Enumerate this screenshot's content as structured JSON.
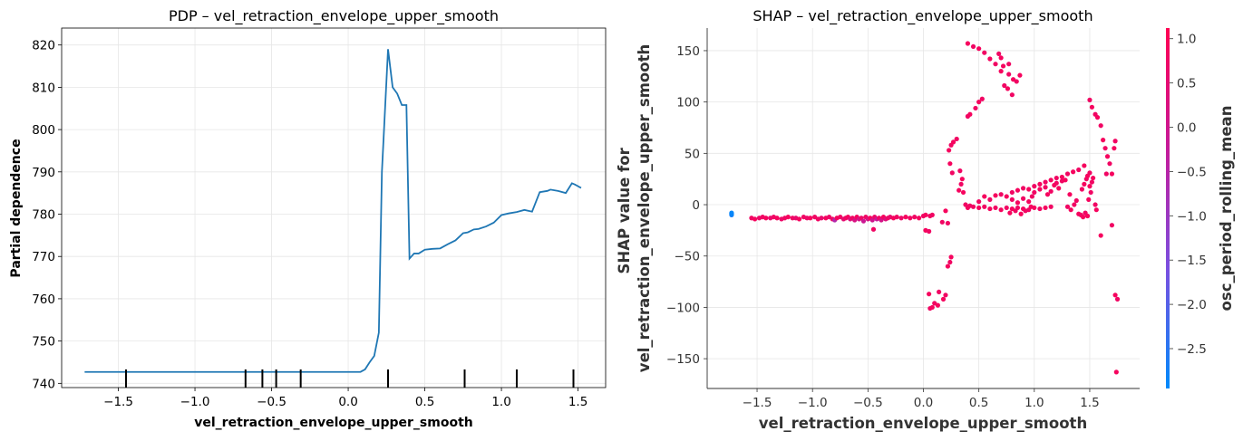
{
  "chart_data": [
    {
      "type": "line",
      "title": "PDP – vel_retraction_envelope_upper_smooth",
      "xlabel": "vel_retraction_envelope_upper_smooth",
      "ylabel": "Partial dependence",
      "xlim": [
        -1.87,
        1.68
      ],
      "ylim": [
        739,
        824
      ],
      "xticks": [
        -1.5,
        -1.0,
        -0.5,
        0.0,
        0.5,
        1.0,
        1.5
      ],
      "xtick_labels": [
        "−1.5",
        "−1.0",
        "−0.5",
        "0.0",
        "0.5",
        "1.0",
        "1.5"
      ],
      "yticks": [
        740,
        750,
        760,
        770,
        780,
        790,
        800,
        810,
        820
      ],
      "yticklabels": [
        "740",
        "750",
        "760",
        "770",
        "780",
        "790",
        "800",
        "810",
        "820"
      ],
      "grid": true,
      "series_color": "#1f77b4",
      "x": [
        -1.72,
        -1.5,
        -1.0,
        -0.5,
        0.0,
        0.08,
        0.11,
        0.14,
        0.17,
        0.2,
        0.22,
        0.26,
        0.29,
        0.32,
        0.35,
        0.38,
        0.4,
        0.43,
        0.46,
        0.5,
        0.55,
        0.6,
        0.65,
        0.7,
        0.75,
        0.78,
        0.82,
        0.85,
        0.9,
        0.95,
        1.0,
        1.05,
        1.1,
        1.15,
        1.2,
        1.25,
        1.3,
        1.32,
        1.37,
        1.42,
        1.46,
        1.48,
        1.52
      ],
      "y": [
        742.7,
        742.7,
        742.7,
        742.7,
        742.7,
        742.7,
        743.3,
        745.0,
        746.5,
        752.0,
        790.0,
        819.0,
        810.0,
        808.5,
        805.8,
        805.8,
        769.5,
        770.7,
        770.7,
        771.6,
        771.8,
        771.9,
        772.9,
        773.8,
        775.5,
        775.7,
        776.4,
        776.5,
        777.1,
        778.0,
        779.8,
        780.2,
        780.5,
        781.0,
        780.6,
        785.2,
        785.5,
        785.8,
        785.5,
        785.0,
        787.3,
        787.0,
        786.2
      ],
      "rug": [
        -1.45,
        -0.67,
        -0.56,
        -0.47,
        -0.31,
        0.26,
        0.76,
        1.1,
        1.47
      ]
    },
    {
      "type": "scatter",
      "title": "SHAP – vel_retraction_envelope_upper_smooth",
      "xlabel": "vel_retraction_envelope_upper_smooth",
      "ylabel": "SHAP value for\nvel_retraction_envelope_upper_smooth",
      "xlim": [
        -1.95,
        1.95
      ],
      "ylim": [
        -179,
        172
      ],
      "xticks": [
        -1.5,
        -1.0,
        -0.5,
        0.0,
        0.5,
        1.0,
        1.5
      ],
      "xtick_labels": [
        "−1.5",
        "−1.0",
        "−0.5",
        "0.0",
        "0.5",
        "1.0",
        "1.5"
      ],
      "yticks": [
        -150,
        -100,
        -50,
        0,
        50,
        100,
        150
      ],
      "ytick_labels": [
        "−150",
        "−100",
        "−50",
        "0",
        "50",
        "100",
        "150"
      ],
      "grid": true,
      "colorbar": {
        "label": "osc_period_rolling_mean",
        "range": [
          -2.95,
          1.12
        ],
        "ticks": [
          1.0,
          0.5,
          0.0,
          -0.5,
          -1.0,
          -1.5,
          -2.0,
          -2.5
        ],
        "tick_labels": [
          "1.0",
          "0.5",
          "0.0",
          "−0.5",
          "−1.0",
          "−1.5",
          "−2.0",
          "−2.5"
        ],
        "cmap_stops": [
          "#008afb",
          "#7a4fe0",
          "#c51a99",
          "#ff0052"
        ]
      },
      "points": [
        [
          -1.73,
          -8,
          -2.9
        ],
        [
          -1.73,
          -10,
          -2.7
        ],
        [
          -1.73,
          -9,
          -2.85
        ],
        [
          -1.55,
          -13,
          0.8
        ],
        [
          -1.52,
          -14,
          0.9
        ],
        [
          -1.48,
          -13,
          0.7
        ],
        [
          -1.45,
          -12,
          0.8
        ],
        [
          -1.42,
          -13,
          0.9
        ],
        [
          -1.38,
          -13,
          0.6
        ],
        [
          -1.35,
          -12,
          0.8
        ],
        [
          -1.32,
          -13,
          0.9
        ],
        [
          -1.28,
          -14,
          0.7
        ],
        [
          -1.25,
          -13,
          0.8
        ],
        [
          -1.22,
          -12,
          0.9
        ],
        [
          -1.18,
          -13,
          0.8
        ],
        [
          -1.15,
          -13,
          0.6
        ],
        [
          -1.12,
          -14,
          0.9
        ],
        [
          -1.08,
          -12,
          0.8
        ],
        [
          -1.05,
          -13,
          0.7
        ],
        [
          -1.02,
          -13,
          0.9
        ],
        [
          -0.98,
          -12,
          0.8
        ],
        [
          -0.95,
          -14,
          0.8
        ],
        [
          -0.92,
          -13,
          0.6
        ],
        [
          -0.88,
          -13,
          0.9
        ],
        [
          -0.85,
          -12,
          0.7
        ],
        [
          -0.82,
          -14,
          0.8
        ],
        [
          -0.8,
          -15,
          -0.6
        ],
        [
          -0.78,
          -13,
          0.9
        ],
        [
          -0.75,
          -12,
          0.8
        ],
        [
          -0.72,
          -14,
          0.5
        ],
        [
          -0.7,
          -13,
          0.8
        ],
        [
          -0.68,
          -12,
          0.9
        ],
        [
          -0.66,
          -14,
          0.3
        ],
        [
          -0.64,
          -13,
          0.8
        ],
        [
          -0.62,
          -15,
          0.2
        ],
        [
          -0.6,
          -12,
          0.9
        ],
        [
          -0.58,
          -14,
          0.1
        ],
        [
          -0.56,
          -13,
          0.7
        ],
        [
          -0.54,
          -16,
          -0.1
        ],
        [
          -0.52,
          -12,
          0.8
        ],
        [
          -0.5,
          -14,
          0.2
        ],
        [
          -0.48,
          -13,
          0.9
        ],
        [
          -0.46,
          -15,
          0.0
        ],
        [
          -0.44,
          -12,
          0.7
        ],
        [
          -0.42,
          -14,
          -0.2
        ],
        [
          -0.4,
          -13,
          0.8
        ],
        [
          -0.38,
          -15,
          0.1
        ],
        [
          -0.36,
          -12,
          0.9
        ],
        [
          -0.34,
          -14,
          0.3
        ],
        [
          -0.32,
          -13,
          0.8
        ],
        [
          -0.3,
          -12,
          0.6
        ],
        [
          -0.27,
          -13,
          0.9
        ],
        [
          -0.24,
          -12,
          0.8
        ],
        [
          -0.2,
          -13,
          0.7
        ],
        [
          -0.16,
          -12,
          0.9
        ],
        [
          -0.12,
          -13,
          0.8
        ],
        [
          -0.08,
          -12,
          0.8
        ],
        [
          -0.04,
          -13,
          0.9
        ],
        [
          -0.45,
          -24,
          0.8
        ],
        [
          0.0,
          -11,
          0.8
        ],
        [
          0.02,
          -10,
          0.9
        ],
        [
          0.06,
          -11,
          0.8
        ],
        [
          0.02,
          -25,
          0.9
        ],
        [
          0.05,
          -26,
          0.8
        ],
        [
          0.08,
          -10,
          0.8
        ],
        [
          0.05,
          -87,
          0.9
        ],
        [
          0.06,
          -101,
          0.8
        ],
        [
          0.08,
          -100,
          0.9
        ],
        [
          0.1,
          -96,
          0.8
        ],
        [
          0.13,
          -98,
          0.9
        ],
        [
          0.14,
          -85,
          0.8
        ],
        [
          0.18,
          -92,
          0.9
        ],
        [
          0.2,
          -88,
          0.8
        ],
        [
          0.22,
          -60,
          0.9
        ],
        [
          0.24,
          -56,
          0.8
        ],
        [
          0.25,
          -51,
          0.9
        ],
        [
          0.17,
          -17,
          0.8
        ],
        [
          0.2,
          -6,
          0.9
        ],
        [
          0.22,
          -18,
          0.8
        ],
        [
          0.23,
          53,
          0.9
        ],
        [
          0.25,
          58,
          0.8
        ],
        [
          0.27,
          61,
          0.9
        ],
        [
          0.3,
          64,
          0.8
        ],
        [
          0.24,
          40,
          0.9
        ],
        [
          0.26,
          31,
          0.8
        ],
        [
          0.32,
          14,
          0.9
        ],
        [
          0.34,
          20,
          0.8
        ],
        [
          0.35,
          25,
          0.9
        ],
        [
          0.33,
          33,
          0.8
        ],
        [
          0.36,
          12,
          0.9
        ],
        [
          0.38,
          0,
          0.8
        ],
        [
          0.4,
          -3,
          0.9
        ],
        [
          0.42,
          -1,
          0.8
        ],
        [
          0.4,
          86,
          0.8
        ],
        [
          0.42,
          88,
          0.9
        ],
        [
          0.47,
          94,
          0.8
        ],
        [
          0.5,
          100,
          0.9
        ],
        [
          0.53,
          103,
          0.8
        ],
        [
          0.4,
          157,
          0.9
        ],
        [
          0.45,
          154,
          0.8
        ],
        [
          0.5,
          152,
          0.9
        ],
        [
          0.55,
          148,
          0.8
        ],
        [
          0.6,
          142,
          0.9
        ],
        [
          0.65,
          137,
          0.8
        ],
        [
          0.7,
          130,
          0.9
        ],
        [
          0.73,
          116,
          0.8
        ],
        [
          0.76,
          113,
          0.9
        ],
        [
          0.8,
          107,
          0.8
        ],
        [
          0.72,
          135,
          0.9
        ],
        [
          0.77,
          127,
          0.8
        ],
        [
          0.81,
          122,
          0.9
        ],
        [
          0.84,
          120,
          0.8
        ],
        [
          0.87,
          126,
          0.9
        ],
        [
          0.77,
          137,
          0.8
        ],
        [
          0.7,
          143,
          0.9
        ],
        [
          0.68,
          147,
          0.8
        ],
        [
          0.45,
          -2,
          0.8
        ],
        [
          0.5,
          -3,
          0.9
        ],
        [
          0.55,
          -2,
          0.8
        ],
        [
          0.6,
          -4,
          0.9
        ],
        [
          0.65,
          -3,
          0.8
        ],
        [
          0.7,
          -5,
          0.9
        ],
        [
          0.75,
          -3,
          0.8
        ],
        [
          0.8,
          -4,
          0.9
        ],
        [
          0.85,
          -3,
          0.8
        ],
        [
          0.9,
          -4,
          0.9
        ],
        [
          0.95,
          -5,
          0.8
        ],
        [
          1.0,
          -3,
          0.9
        ],
        [
          1.05,
          -4,
          0.8
        ],
        [
          1.1,
          -3,
          0.9
        ],
        [
          1.15,
          -2,
          0.8
        ],
        [
          0.5,
          3,
          0.8
        ],
        [
          0.55,
          8,
          0.9
        ],
        [
          0.6,
          5,
          0.8
        ],
        [
          0.65,
          9,
          0.9
        ],
        [
          0.7,
          10,
          0.8
        ],
        [
          0.75,
          8,
          0.9
        ],
        [
          0.8,
          12,
          0.8
        ],
        [
          0.85,
          14,
          0.9
        ],
        [
          0.9,
          16,
          0.8
        ],
        [
          0.95,
          15,
          0.9
        ],
        [
          1.0,
          18,
          0.8
        ],
        [
          1.05,
          20,
          0.9
        ],
        [
          1.1,
          22,
          0.8
        ],
        [
          1.15,
          24,
          0.9
        ],
        [
          1.2,
          26,
          0.8
        ],
        [
          1.25,
          27,
          0.9
        ],
        [
          1.3,
          30,
          0.8
        ],
        [
          1.35,
          32,
          0.9
        ],
        [
          1.4,
          34,
          0.8
        ],
        [
          1.45,
          38,
          0.9
        ],
        [
          1.0,
          12,
          0.8
        ],
        [
          1.05,
          15,
          0.9
        ],
        [
          1.1,
          17,
          0.8
        ],
        [
          1.12,
          10,
          0.9
        ],
        [
          1.15,
          13,
          0.8
        ],
        [
          1.18,
          19,
          0.9
        ],
        [
          1.2,
          21,
          0.8
        ],
        [
          1.22,
          16,
          0.9
        ],
        [
          1.25,
          23,
          0.8
        ],
        [
          1.28,
          24,
          0.9
        ],
        [
          0.8,
          5,
          0.8
        ],
        [
          0.85,
          2,
          0.9
        ],
        [
          0.9,
          6,
          0.8
        ],
        [
          0.95,
          3,
          0.9
        ],
        [
          0.98,
          8,
          0.8
        ],
        [
          0.78,
          -8,
          0.9
        ],
        [
          0.83,
          -6,
          0.8
        ],
        [
          0.88,
          -9,
          0.9
        ],
        [
          0.92,
          -6,
          0.8
        ],
        [
          0.97,
          -2,
          0.9
        ],
        [
          1.3,
          -2,
          0.8
        ],
        [
          1.33,
          -5,
          0.9
        ],
        [
          1.36,
          0,
          0.8
        ],
        [
          1.4,
          -9,
          0.9
        ],
        [
          1.42,
          -10,
          0.8
        ],
        [
          1.44,
          -12,
          0.9
        ],
        [
          1.46,
          -8,
          0.8
        ],
        [
          1.48,
          -11,
          0.9
        ],
        [
          1.38,
          4,
          0.8
        ],
        [
          1.32,
          10,
          0.9
        ],
        [
          1.43,
          15,
          0.8
        ],
        [
          1.45,
          20,
          0.9
        ],
        [
          1.47,
          25,
          0.8
        ],
        [
          1.48,
          28,
          0.9
        ],
        [
          1.5,
          31,
          0.8
        ],
        [
          1.5,
          18,
          0.9
        ],
        [
          1.52,
          22,
          0.8
        ],
        [
          1.53,
          26,
          0.9
        ],
        [
          1.51,
          12,
          0.8
        ],
        [
          1.49,
          5,
          0.9
        ],
        [
          1.5,
          102,
          0.8
        ],
        [
          1.52,
          95,
          0.9
        ],
        [
          1.55,
          88,
          0.8
        ],
        [
          1.57,
          85,
          0.9
        ],
        [
          1.6,
          77,
          0.8
        ],
        [
          1.62,
          63,
          0.9
        ],
        [
          1.64,
          55,
          0.8
        ],
        [
          1.66,
          47,
          0.9
        ],
        [
          1.68,
          40,
          0.8
        ],
        [
          1.7,
          30,
          0.9
        ],
        [
          1.73,
          62,
          0.8
        ],
        [
          1.72,
          55,
          0.9
        ],
        [
          1.65,
          30,
          0.8
        ],
        [
          1.6,
          -30,
          0.9
        ],
        [
          1.7,
          -20,
          0.8
        ],
        [
          1.73,
          -88,
          0.9
        ],
        [
          1.75,
          -92,
          0.8
        ],
        [
          1.74,
          -163,
          0.9
        ],
        [
          1.55,
          0,
          0.8
        ],
        [
          1.56,
          -5,
          0.9
        ]
      ]
    }
  ]
}
